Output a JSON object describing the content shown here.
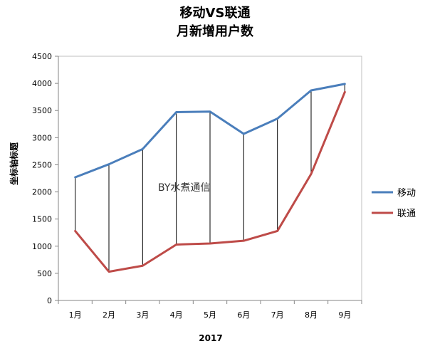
{
  "chart_data": {
    "type": "line",
    "title_line1": "移动VS联通",
    "title_line2": "月新增用户数",
    "xlabel": "2017",
    "ylabel": "坐标轴标题",
    "categories": [
      "1月",
      "2月",
      "3月",
      "4月",
      "5月",
      "6月",
      "7月",
      "8月",
      "9月"
    ],
    "ylim": [
      0,
      4500
    ],
    "yticks": [
      "0",
      "500",
      "1000",
      "1500",
      "2000",
      "2500",
      "3000",
      "3500",
      "4000",
      "4500"
    ],
    "series": [
      {
        "name": "移动",
        "color": "#4a7ebb",
        "values": [
          2270,
          2510,
          2790,
          3470,
          3480,
          3070,
          3350,
          3870,
          3990
        ]
      },
      {
        "name": "联通",
        "color": "#be4b48",
        "values": [
          1280,
          530,
          640,
          1030,
          1050,
          1100,
          1280,
          2330,
          3840
        ]
      }
    ],
    "grid": false,
    "drop_lines": true,
    "legend_position": "right",
    "annotation": "BY水煮通信"
  }
}
